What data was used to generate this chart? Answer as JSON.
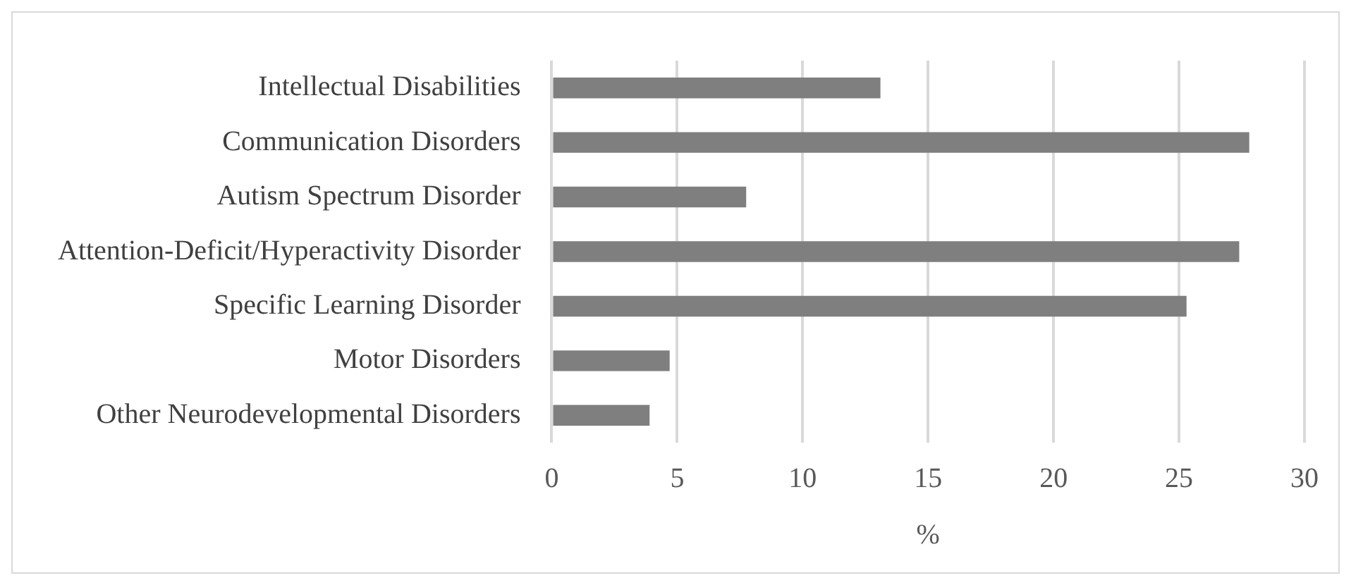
{
  "chart_data": {
    "type": "bar",
    "orientation": "horizontal",
    "xlabel": "%",
    "categories": [
      "Intellectual Disabilities",
      "Communication Disorders",
      "Autism Spectrum Disorder",
      "Attention-Deficit/Hyperactivity Disorder",
      "Specific Learning Disorder",
      "Motor Disorders",
      "Other Neurodevelopmental Disorders"
    ],
    "values": [
      13.1,
      27.8,
      7.75,
      27.4,
      25.3,
      4.7,
      3.9
    ],
    "color": "#7f7f7f",
    "xlim": [
      0,
      30
    ],
    "xticks": [
      0,
      5,
      10,
      15,
      20,
      25,
      30
    ],
    "grid": "x",
    "legend": false
  }
}
